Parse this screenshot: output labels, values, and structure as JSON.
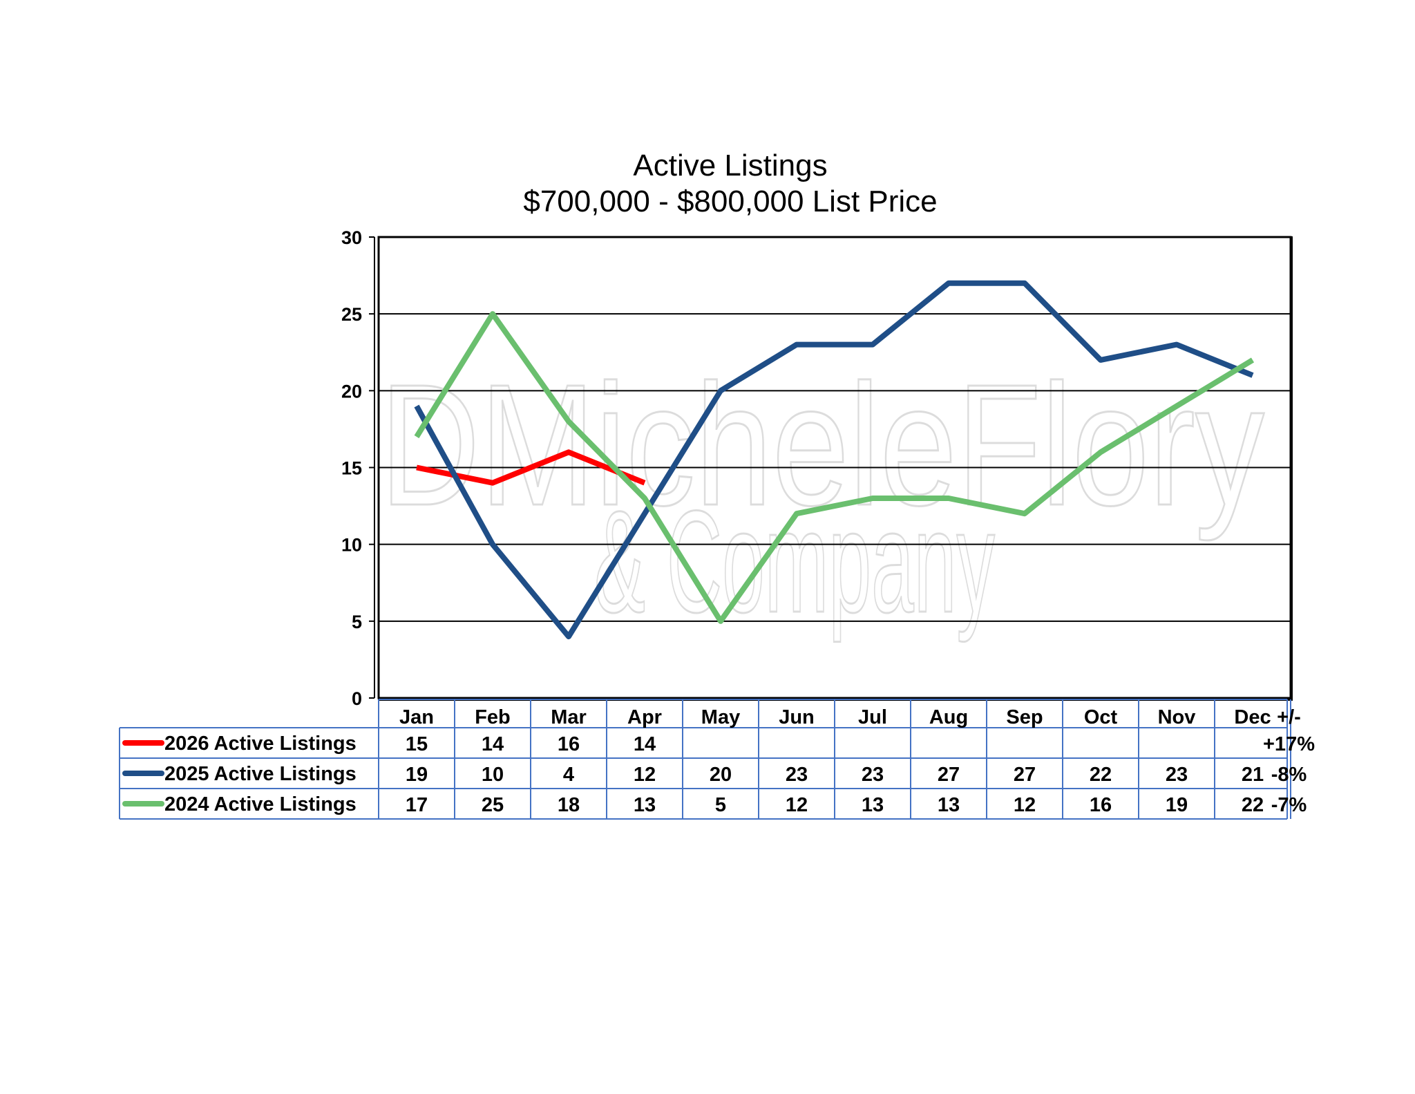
{
  "watermark": {
    "line1": "DMicheleFlory",
    "line2": "& Company"
  },
  "chart_data": {
    "type": "line",
    "title": "Active Listings",
    "subtitle": "$700,000 - $800,000 List Price",
    "categories": [
      "Jan",
      "Feb",
      "Mar",
      "Apr",
      "May",
      "Jun",
      "Jul",
      "Aug",
      "Sep",
      "Oct",
      "Nov",
      "Dec"
    ],
    "change_header": "+/-",
    "ylim": [
      0,
      30
    ],
    "yticks": [
      0,
      5,
      10,
      15,
      20,
      25,
      30
    ],
    "grid": true,
    "legend": "data-table",
    "series": [
      {
        "name": "2026 Active Listings",
        "color": "#ff0000",
        "values": [
          15,
          14,
          16,
          14,
          null,
          null,
          null,
          null,
          null,
          null,
          null,
          null
        ],
        "change": "+17%"
      },
      {
        "name": "2025 Active Listings",
        "color": "#1f4e87",
        "values": [
          19,
          10,
          4,
          12,
          20,
          23,
          23,
          27,
          27,
          22,
          23,
          21
        ],
        "change": "-8%"
      },
      {
        "name": "2024 Active Listings",
        "color": "#6abf6e",
        "values": [
          17,
          25,
          18,
          13,
          5,
          12,
          13,
          13,
          12,
          16,
          19,
          22
        ],
        "change": "-7%"
      }
    ]
  }
}
